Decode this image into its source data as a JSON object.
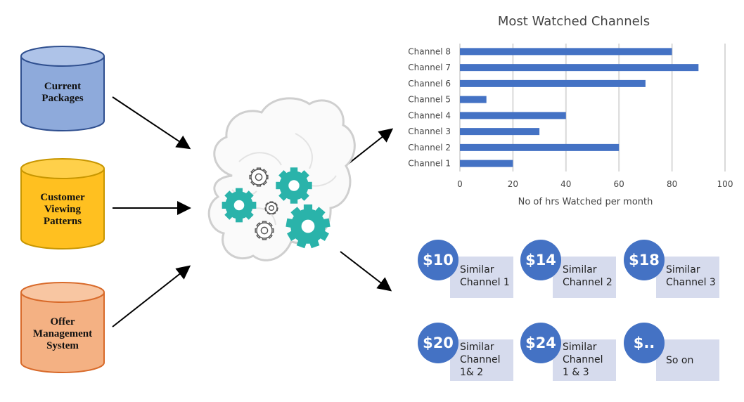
{
  "sources": [
    {
      "label": "Current\nPackages",
      "color": "#8eaadb",
      "stroke": "#2f4f8f"
    },
    {
      "label": "Customer\nViewing\nPatterns",
      "color": "#ffc020",
      "stroke": "#c89600"
    },
    {
      "label": "Offer\nManagement\nSystem",
      "color": "#f4b183",
      "stroke": "#d86a2a"
    }
  ],
  "brain": {
    "icon": "brain-gears-icon",
    "outline": "#c9c9c9",
    "gear": "#2ab3aa"
  },
  "chart_data": {
    "type": "bar",
    "orientation": "horizontal",
    "title": "Most Watched Channels",
    "xlabel": "No of hrs Watched per month",
    "ylabel": "",
    "categories": [
      "Channel 1",
      "Channel 2",
      "Channel 3",
      "Channel 4",
      "Channel 5",
      "Channel 6",
      "Channel 7",
      "Channel 8"
    ],
    "values": [
      20,
      60,
      30,
      40,
      10,
      70,
      90,
      80
    ],
    "xlim": [
      0,
      100
    ],
    "ticks": [
      "0",
      "20",
      "40",
      "60",
      "80",
      "100"
    ],
    "grid": true,
    "bar_color": "#4472c4"
  },
  "offers": [
    {
      "price": "$10",
      "text": "Similar\nChannel 1"
    },
    {
      "price": "$14",
      "text": "Similar\nChannel 2"
    },
    {
      "price": "$18",
      "text": "Similar\nChannel 3"
    },
    {
      "price": "$20",
      "text": "Similar\nChannel\n1& 2"
    },
    {
      "price": "$24",
      "text": "Similar\nChannel\n1 & 3"
    },
    {
      "price": "$..",
      "text": "So on"
    }
  ]
}
